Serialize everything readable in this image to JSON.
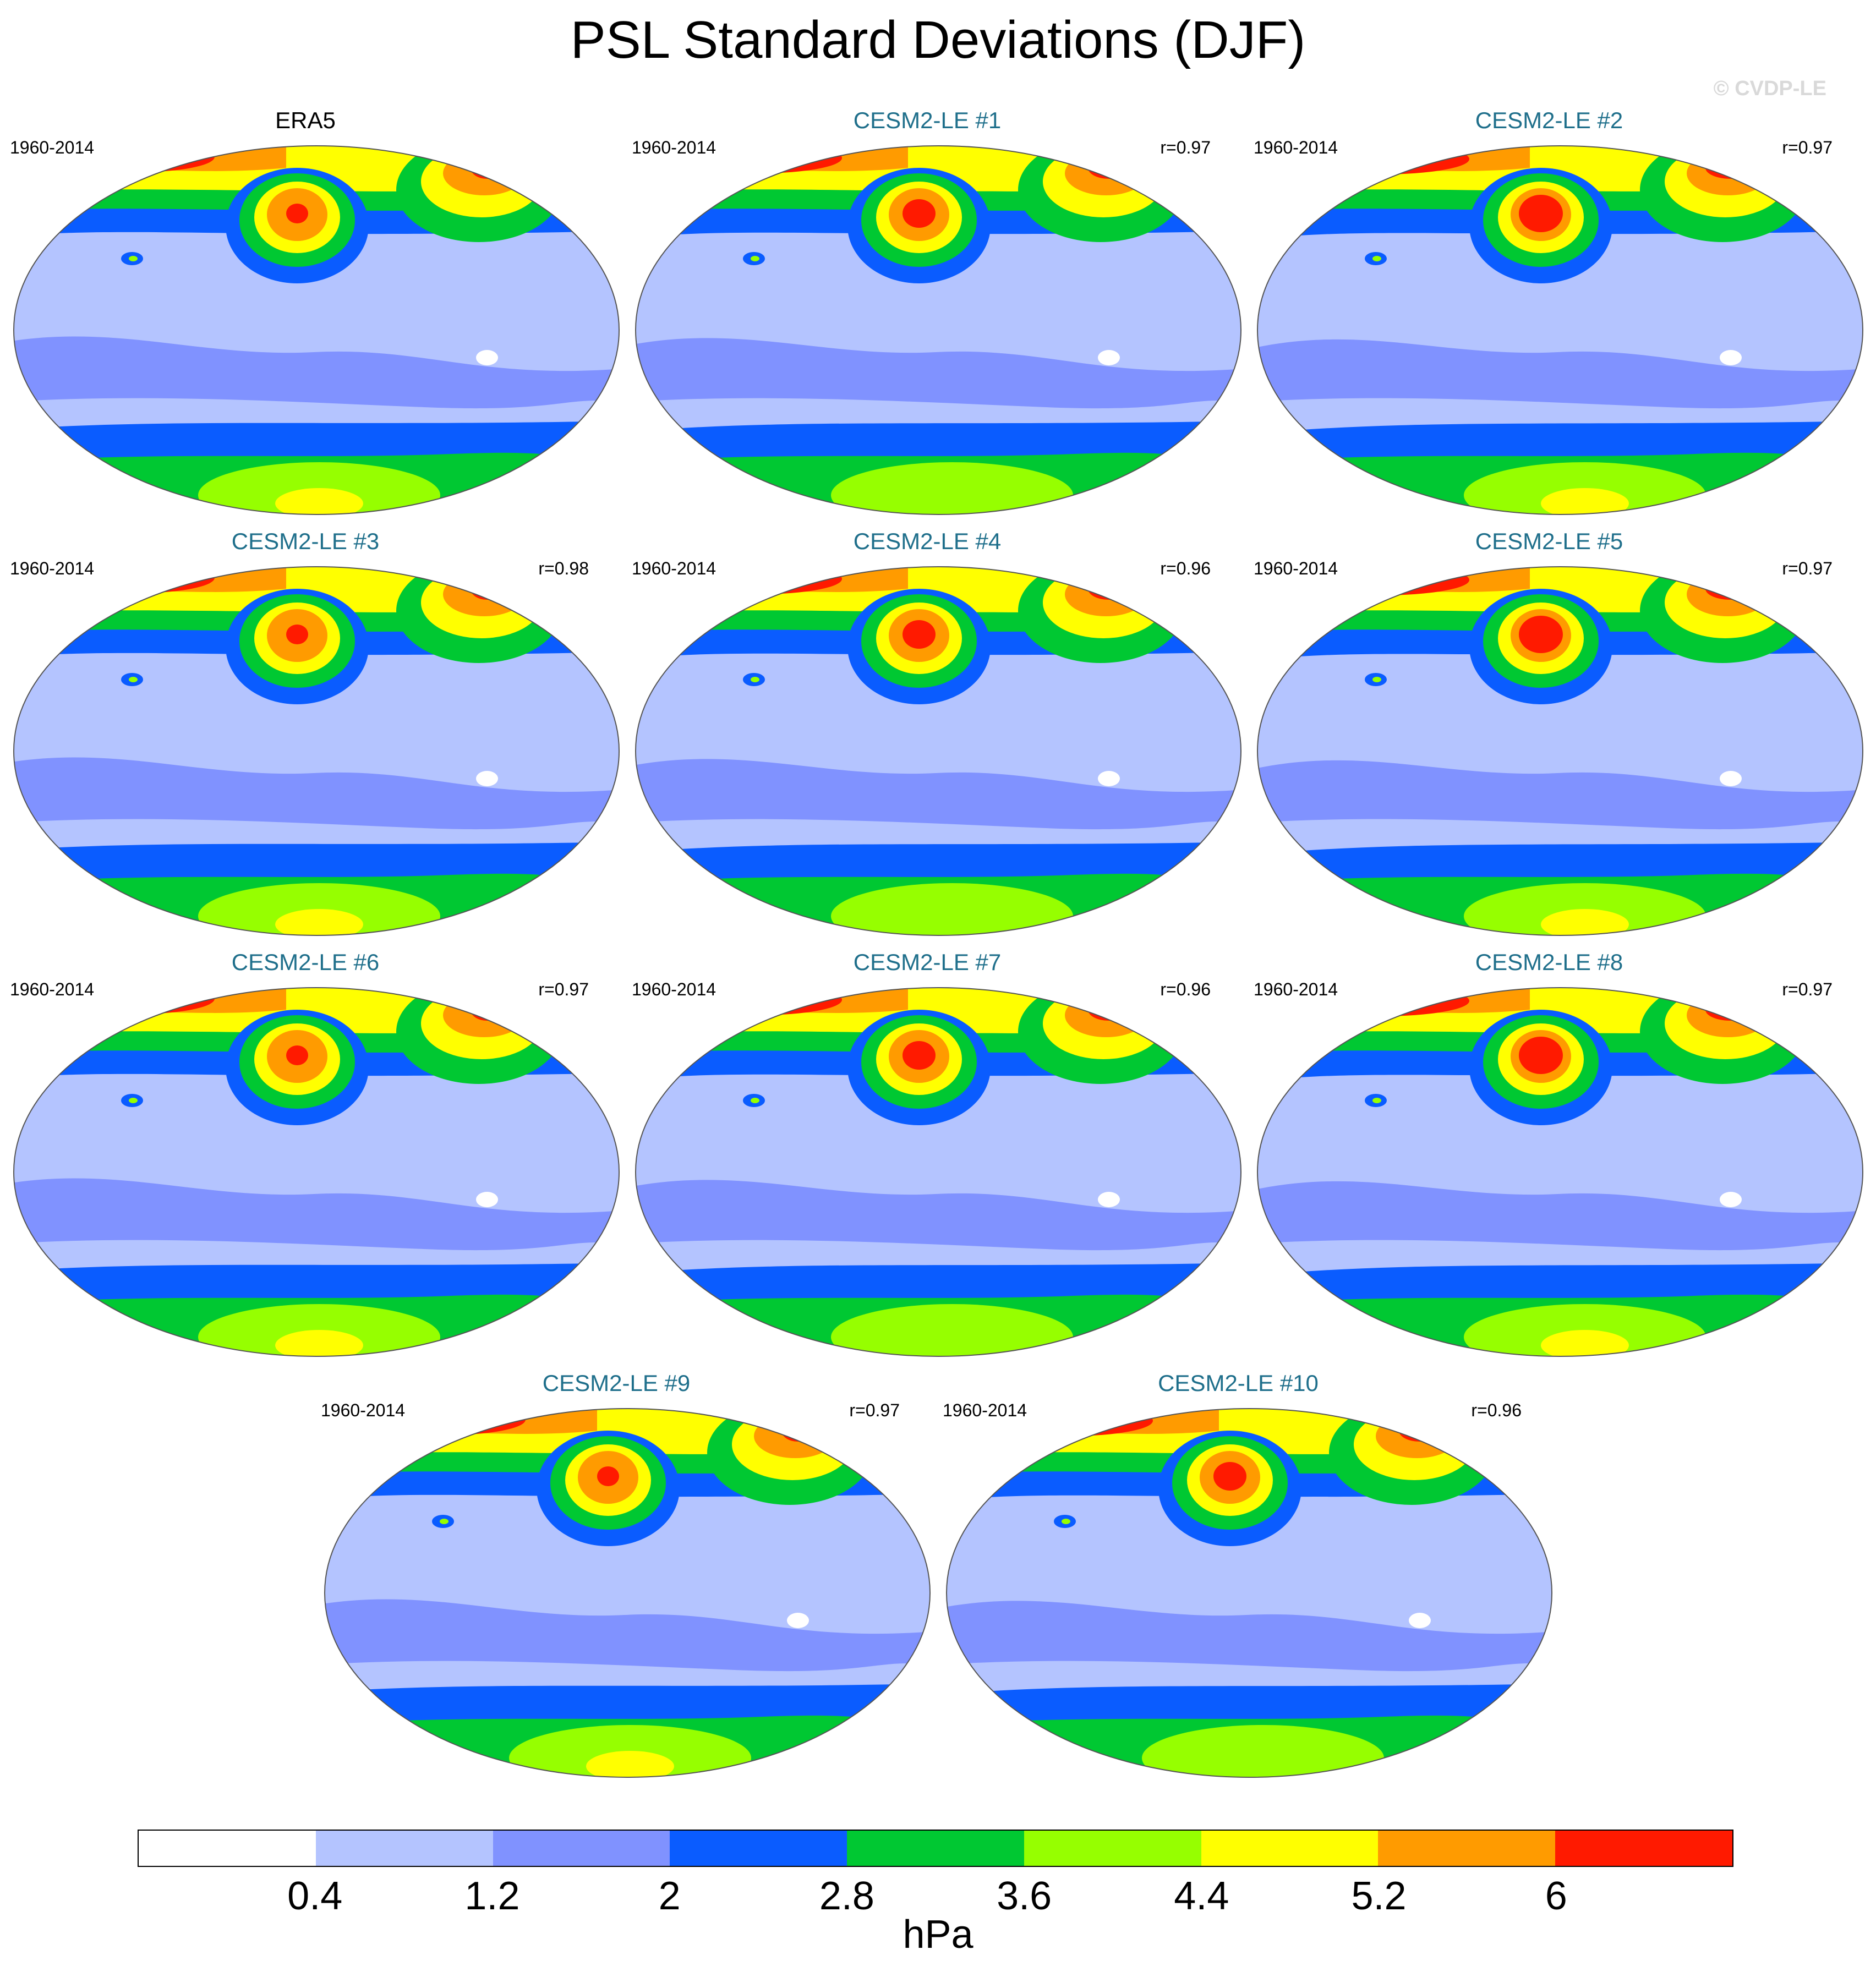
{
  "title": "PSL Standard Deviations (DJF)",
  "watermark": "© CVDP-LE",
  "panels": [
    {
      "title": "ERA5",
      "years": "1960-2014",
      "corr": "",
      "observed": true
    },
    {
      "title": "CESM2-LE #1",
      "years": "1960-2014",
      "corr": "r=0.97"
    },
    {
      "title": "CESM2-LE #2",
      "years": "1960-2014",
      "corr": "r=0.97"
    },
    {
      "title": "CESM2-LE #3",
      "years": "1960-2014",
      "corr": "r=0.98"
    },
    {
      "title": "CESM2-LE #4",
      "years": "1960-2014",
      "corr": "r=0.96"
    },
    {
      "title": "CESM2-LE #5",
      "years": "1960-2014",
      "corr": "r=0.97"
    },
    {
      "title": "CESM2-LE #6",
      "years": "1960-2014",
      "corr": "r=0.97"
    },
    {
      "title": "CESM2-LE #7",
      "years": "1960-2014",
      "corr": "r=0.96"
    },
    {
      "title": "CESM2-LE #8",
      "years": "1960-2014",
      "corr": "r=0.97"
    },
    {
      "title": "CESM2-LE #9",
      "years": "1960-2014",
      "corr": "r=0.97"
    },
    {
      "title": "CESM2-LE #10",
      "years": "1960-2014",
      "corr": "r=0.96"
    }
  ],
  "colorbar": {
    "colors": [
      "#ffffff",
      "#b4c4ff",
      "#8092ff",
      "#0a5cff",
      "#00c832",
      "#96ff00",
      "#ffff00",
      "#ff9b00",
      "#ff1a00"
    ],
    "ticks": [
      "0.4",
      "1.2",
      "2",
      "2.8",
      "3.6",
      "4.4",
      "5.2",
      "6"
    ],
    "unit": "hPa"
  }
}
